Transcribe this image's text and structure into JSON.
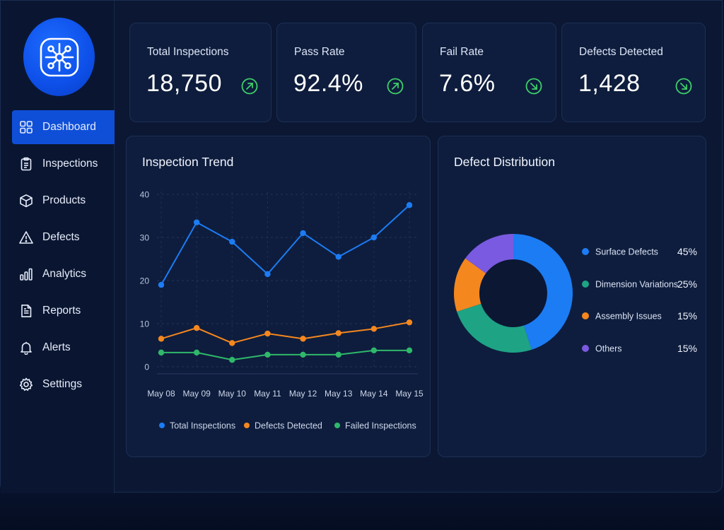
{
  "sidebar": {
    "logo_icon": "network-hub-icon",
    "items": [
      {
        "label": "Dashboard",
        "icon": "dashboard-grid-icon",
        "active": true
      },
      {
        "label": "Inspections",
        "icon": "clipboard-icon",
        "active": false
      },
      {
        "label": "Products",
        "icon": "cube-icon",
        "active": false
      },
      {
        "label": "Defects",
        "icon": "warning-triangle-icon",
        "active": false
      },
      {
        "label": "Analytics",
        "icon": "bar-chart-icon",
        "active": false
      },
      {
        "label": "Reports",
        "icon": "document-icon",
        "active": false
      },
      {
        "label": "Alerts",
        "icon": "bell-icon",
        "active": false
      },
      {
        "label": "Settings",
        "icon": "gear-icon",
        "active": false
      }
    ]
  },
  "kpis": [
    {
      "label": "Total Inspections",
      "value": "18,750",
      "trend": "up"
    },
    {
      "label": "Pass Rate",
      "value": "92.4%",
      "trend": "up"
    },
    {
      "label": "Fail Rate",
      "value": "7.6%",
      "trend": "down"
    },
    {
      "label": "Defects Detected",
      "value": "1,428",
      "trend": "down"
    }
  ],
  "colors": {
    "accent": "#0f4fd8",
    "trend": "#3ecf6a",
    "total": "#1c7cf4",
    "defects": "#f5871f",
    "failed": "#2fb86a",
    "others": "#7a5ae0",
    "dimension": "#1ea385"
  },
  "trend_panel": {
    "title": "Inspection Trend"
  },
  "distribution_panel": {
    "title": "Defect Distribution"
  },
  "chart_data": [
    {
      "type": "line",
      "title": "Inspection Trend",
      "categories": [
        "May 08",
        "May 09",
        "May 10",
        "May 11",
        "May 12",
        "May 13",
        "May 14",
        "May 15"
      ],
      "ylim": [
        0,
        40
      ],
      "yticks": [
        0,
        10,
        20,
        30,
        40
      ],
      "grid": true,
      "legend_position": "bottom",
      "series": [
        {
          "name": "Total Inspections",
          "values": [
            19,
            33.5,
            29,
            21.5,
            31,
            25.5,
            30,
            37.5
          ]
        },
        {
          "name": "Defects Detected",
          "values": [
            6.5,
            9,
            5.5,
            7.7,
            6.5,
            7.8,
            8.8,
            10.3
          ]
        },
        {
          "name": "Failed Inspections",
          "values": [
            3.3,
            3.3,
            1.6,
            2.8,
            2.8,
            2.8,
            3.8,
            3.8
          ]
        }
      ]
    },
    {
      "type": "pie",
      "title": "Defect Distribution",
      "legend_position": "right",
      "slices": [
        {
          "label": "Surface Defects",
          "value": 45,
          "display": "45%"
        },
        {
          "label": "Dimension Variations",
          "value": 25,
          "display": "25%"
        },
        {
          "label": "Assembly Issues",
          "value": 15,
          "display": "15%"
        },
        {
          "label": "Others",
          "value": 15,
          "display": "15%"
        }
      ]
    }
  ]
}
